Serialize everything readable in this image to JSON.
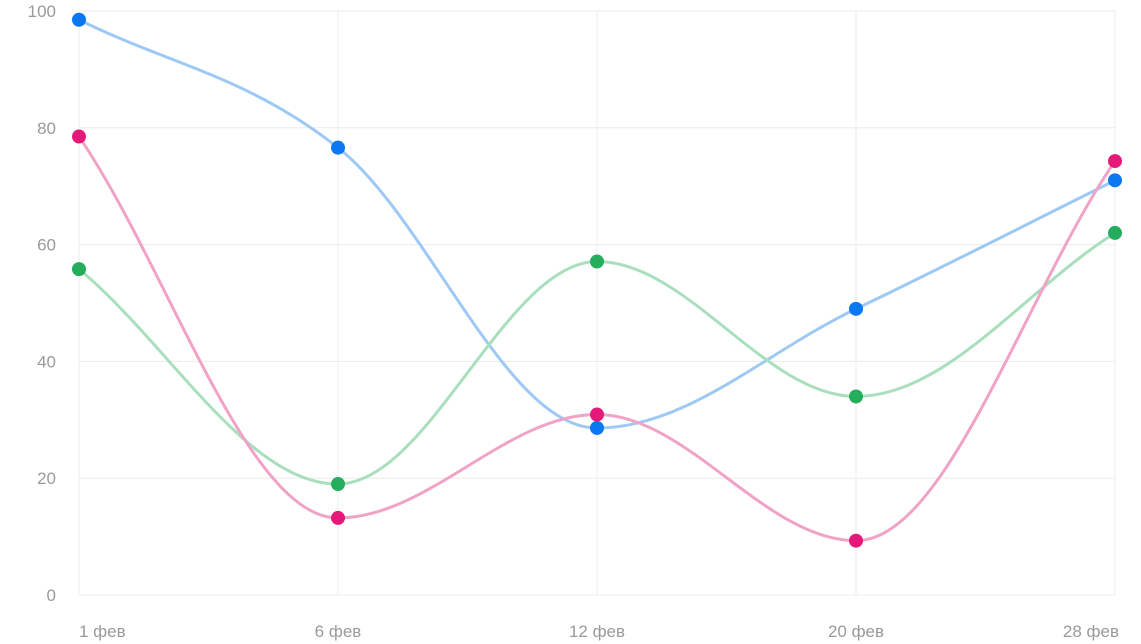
{
  "chart_data": {
    "type": "line",
    "smooth": true,
    "categories": [
      "1 фев",
      "6 фев",
      "12 фев",
      "20 фев",
      "28 фев"
    ],
    "ylim": [
      0,
      100
    ],
    "yticks": [
      "0",
      "20",
      "40",
      "60",
      "80",
      "100"
    ],
    "grid": true,
    "legend": "none",
    "series": [
      {
        "values": [
          98.5,
          76.6,
          28.6,
          49,
          71
        ],
        "color": "#0a78f0",
        "line_color": "#9ec9f5"
      },
      {
        "values": [
          55.8,
          19,
          57.1,
          34,
          62
        ],
        "color": "#24ad5d",
        "line_color": "#a9dfbd"
      },
      {
        "values": [
          78.5,
          13.2,
          30.9,
          9.3,
          74.3
        ],
        "color": "#e6197a",
        "line_color": "#f0a3c7"
      }
    ]
  }
}
